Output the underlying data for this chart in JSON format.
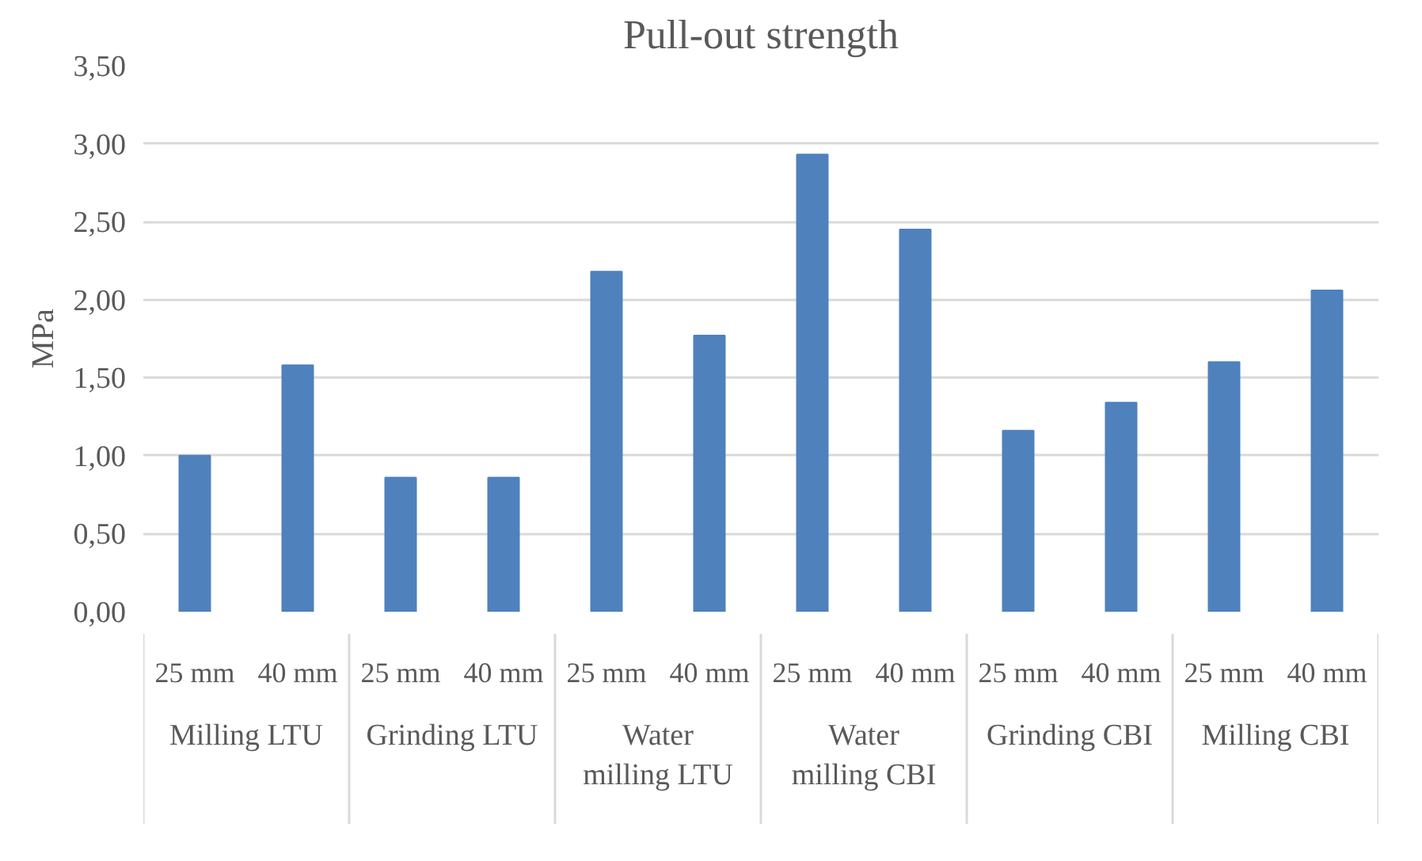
{
  "chart_data": {
    "type": "bar",
    "title": "Pull-out strength",
    "ylabel": "MPa",
    "categories": [
      "25 mm",
      "40 mm",
      "25 mm",
      "40 mm",
      "25 mm",
      "40 mm",
      "25 mm",
      "40 mm",
      "25 mm",
      "40 mm",
      "25 mm",
      "40 mm"
    ],
    "values": [
      1.0,
      1.58,
      0.86,
      0.86,
      2.18,
      1.77,
      2.93,
      2.45,
      1.16,
      1.34,
      1.6,
      2.06
    ],
    "color": "#4f81bd",
    "annotations": [
      "Milling LTU",
      "Grinding LTU",
      "Water milling LTU",
      "Water milling CBI",
      "Grinding CBI",
      "Milling CBI"
    ],
    "ylim": [
      0,
      3.5
    ],
    "yticks": [
      {
        "value": 0,
        "label": "0,00"
      },
      {
        "value": 0.5,
        "label": "0,50"
      },
      {
        "value": 1,
        "label": "1,00"
      },
      {
        "value": 1.5,
        "label": "1,50"
      },
      {
        "value": 2,
        "label": "2,00"
      },
      {
        "value": 2.5,
        "label": "2,50"
      },
      {
        "value": 3,
        "label": "3,00"
      },
      {
        "value": 3.5,
        "label": "3,50"
      }
    ],
    "grid": "y"
  }
}
